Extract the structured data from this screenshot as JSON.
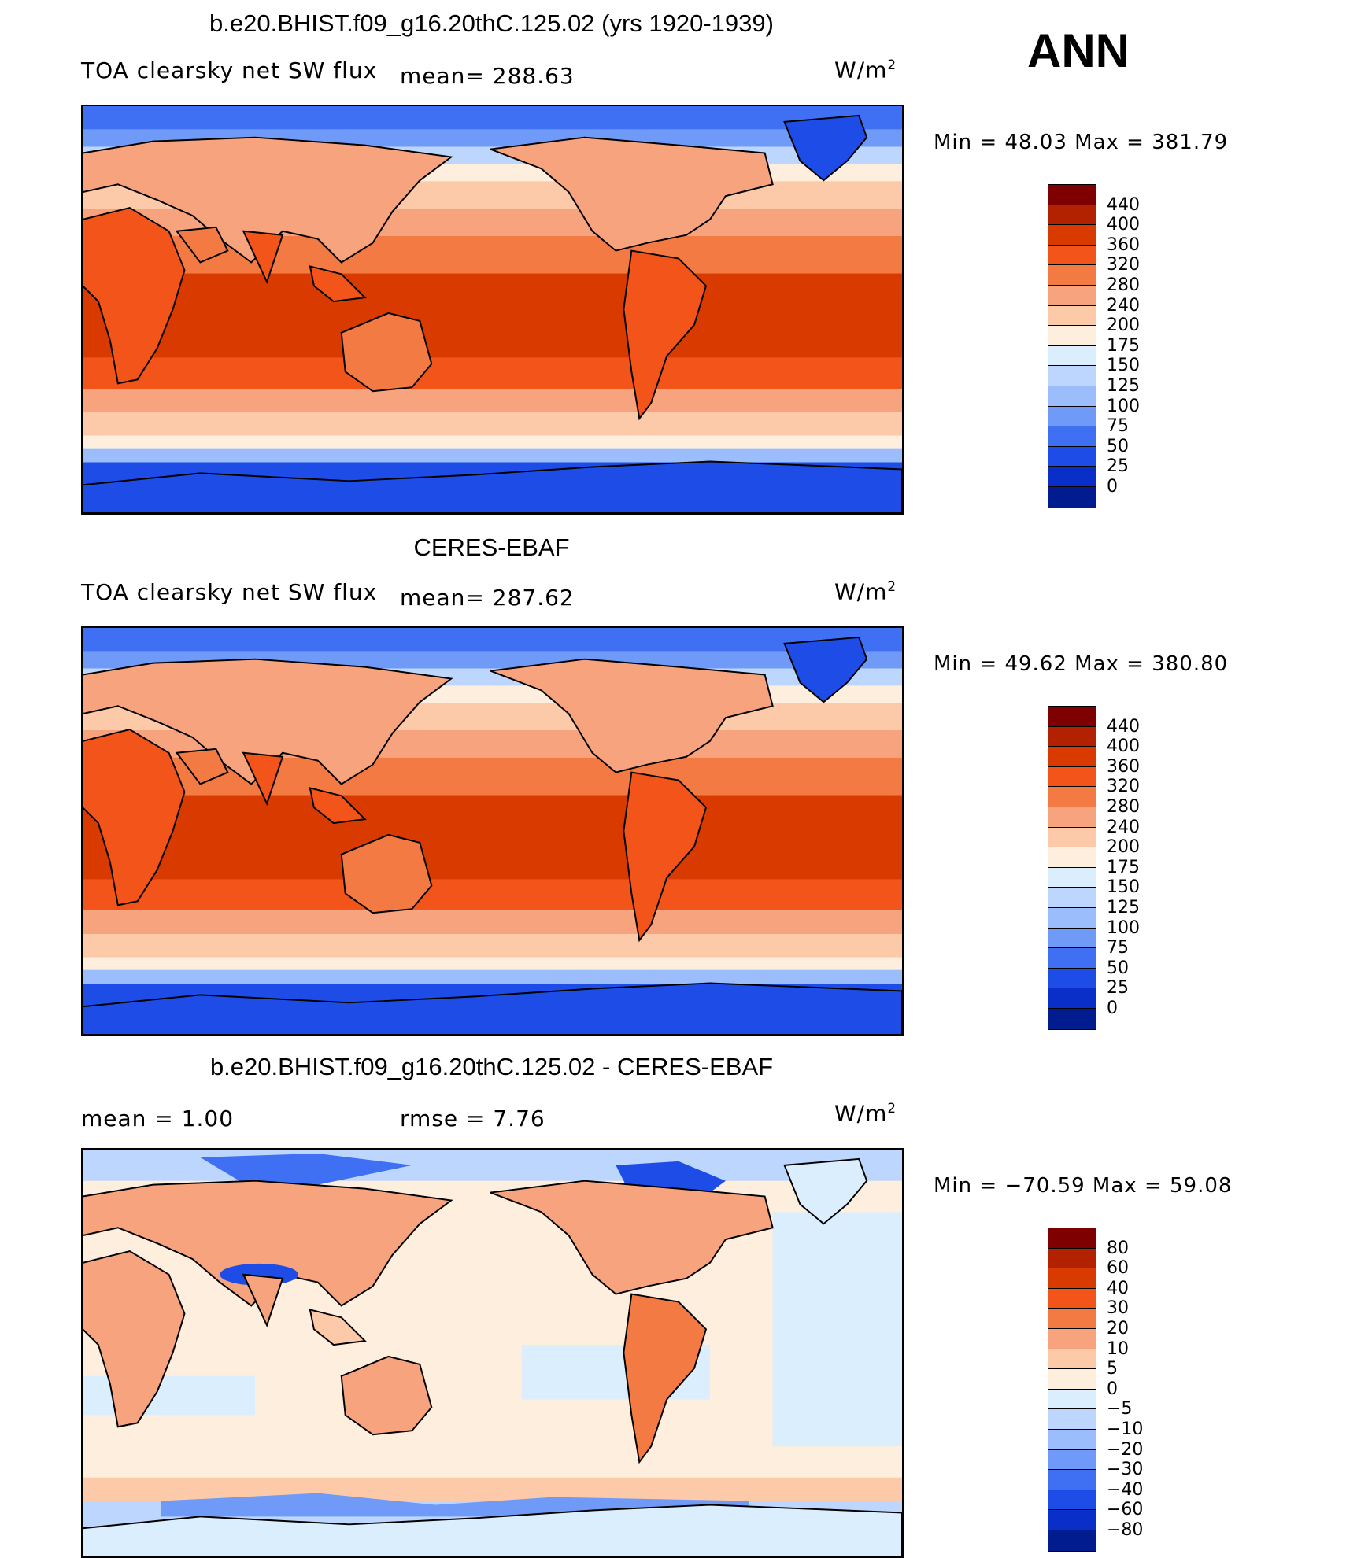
{
  "season": "ANN",
  "panels": [
    {
      "title": "b.e20.BHIST.f09_g16.20thC.125.02 (yrs 1920-1939)",
      "left_label": "TOA clearsky net SW flux",
      "mean_label": "mean=  288.63",
      "units_base": "W/m",
      "units_exp": "2",
      "minmax": "Min =   48.03  Max  =  381.79",
      "colorbar_levels": [
        "440",
        "400",
        "360",
        "320",
        "280",
        "240",
        "200",
        "175",
        "150",
        "125",
        "100",
        "75",
        "50",
        "25",
        "0"
      ],
      "colorbar_colors": [
        "#7f0000",
        "#b22200",
        "#d93a00",
        "#f2541a",
        "#f47a44",
        "#f7a37e",
        "#fccaa9",
        "#fdeedd",
        "#dbeefe",
        "#bcd6fd",
        "#9cbdfc",
        "#6f9af7",
        "#3f6ff2",
        "#1d4de6",
        "#0a2fc9",
        "#001c8e"
      ]
    },
    {
      "title": "CERES-EBAF",
      "left_label": "TOA clearsky net SW flux",
      "mean_label": "mean=  287.62",
      "units_base": "W/m",
      "units_exp": "2",
      "minmax": "Min =   49.62  Max  =  380.80",
      "colorbar_levels": [
        "440",
        "400",
        "360",
        "320",
        "280",
        "240",
        "200",
        "175",
        "150",
        "125",
        "100",
        "75",
        "50",
        "25",
        "0"
      ],
      "colorbar_colors": [
        "#7f0000",
        "#b22200",
        "#d93a00",
        "#f2541a",
        "#f47a44",
        "#f7a37e",
        "#fccaa9",
        "#fdeedd",
        "#dbeefe",
        "#bcd6fd",
        "#9cbdfc",
        "#6f9af7",
        "#3f6ff2",
        "#1d4de6",
        "#0a2fc9",
        "#001c8e"
      ]
    },
    {
      "title": "b.e20.BHIST.f09_g16.20thC.125.02 - CERES-EBAF",
      "mean_text": "mean  =     1.00",
      "rmse_text": "rmse  =     7.76",
      "units_base": "W/m",
      "units_exp": "2",
      "minmax": "Min  =  −70.59  Max  =   59.08",
      "colorbar_levels": [
        "80",
        "60",
        "40",
        "30",
        "20",
        "10",
        "5",
        "0",
        "−5",
        "−10",
        "−20",
        "−30",
        "−40",
        "−60",
        "−80"
      ],
      "colorbar_colors": [
        "#7f0000",
        "#b22200",
        "#d93a00",
        "#f2541a",
        "#f47a44",
        "#f7a37e",
        "#fccaa9",
        "#fdeedd",
        "#dbeefe",
        "#bcd6fd",
        "#9cbdfc",
        "#6f9af7",
        "#3f6ff2",
        "#1d4de6",
        "#0a2fc9",
        "#001c8e"
      ]
    }
  ]
}
